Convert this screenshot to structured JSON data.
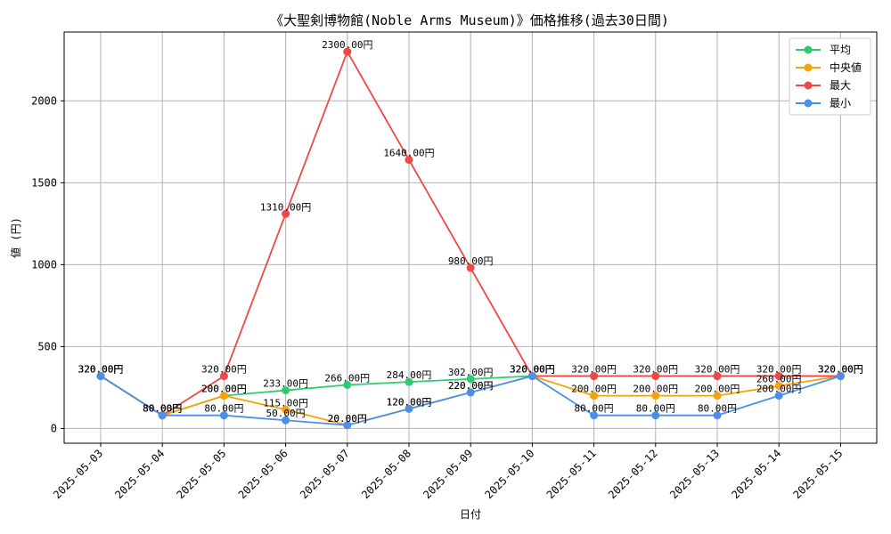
{
  "chart_data": {
    "type": "line",
    "title": "《大聖剣博物館(Noble Arms Museum)》価格推移(過去30日間)",
    "xlabel": "日付",
    "ylabel": "値 (円)",
    "ylim": [
      -90,
      2420
    ],
    "yticks": [
      0,
      500,
      1000,
      1500,
      2000
    ],
    "grid": true,
    "legend_position": "top-right",
    "categories": [
      "2025-05-03",
      "2025-05-04",
      "2025-05-05",
      "2025-05-06",
      "2025-05-07",
      "2025-05-08",
      "2025-05-09",
      "2025-05-10",
      "2025-05-11",
      "2025-05-12",
      "2025-05-13",
      "2025-05-14",
      "2025-05-15"
    ],
    "value_suffix": "円",
    "series": [
      {
        "name": "平均",
        "color": "#2ecc71",
        "values": [
          320,
          80,
          200,
          233,
          266,
          284,
          302,
          320,
          320,
          320,
          320,
          320,
          320
        ],
        "labels": [
          "320.00円",
          "80.00円",
          "200.00円",
          "233.00円",
          "266.00円",
          "284.00円",
          "302.00円",
          "320.00円",
          "",
          "",
          "",
          "",
          ""
        ]
      },
      {
        "name": "中央値",
        "color": "#f5a30a",
        "values": [
          320,
          80,
          200,
          115,
          20,
          120,
          220,
          320,
          200,
          200,
          200,
          260,
          320
        ],
        "labels": [
          "320.00円",
          "80.00円",
          "200.00円",
          "115.00円",
          "20.00円",
          "120.00円",
          "220.00円",
          "320.00円",
          "200.00円",
          "200.00円",
          "200.00円",
          "260.00円",
          "320.00円"
        ]
      },
      {
        "name": "最大",
        "color": "#f04747",
        "values": [
          320,
          80,
          320,
          1310,
          2300,
          1640,
          980,
          320,
          320,
          320,
          320,
          320,
          320
        ],
        "labels": [
          "320.00円",
          "80.00円",
          "320.00円",
          "1310.00円",
          "2300.00円",
          "1640.00円",
          "980.00円",
          "320.00円",
          "320.00円",
          "320.00円",
          "320.00円",
          "320.00円",
          "320.00円"
        ]
      },
      {
        "name": "最小",
        "color": "#4a90e8",
        "values": [
          320,
          80,
          80,
          50,
          20,
          120,
          220,
          320,
          80,
          80,
          80,
          200,
          320
        ],
        "labels": [
          "320.00円",
          "80.00円",
          "80.00円",
          "50.00円",
          "20.00円",
          "120.00円",
          "220.00円",
          "320.00円",
          "80.00円",
          "80.00円",
          "80.00円",
          "200.00円",
          "320.00円"
        ]
      }
    ]
  }
}
